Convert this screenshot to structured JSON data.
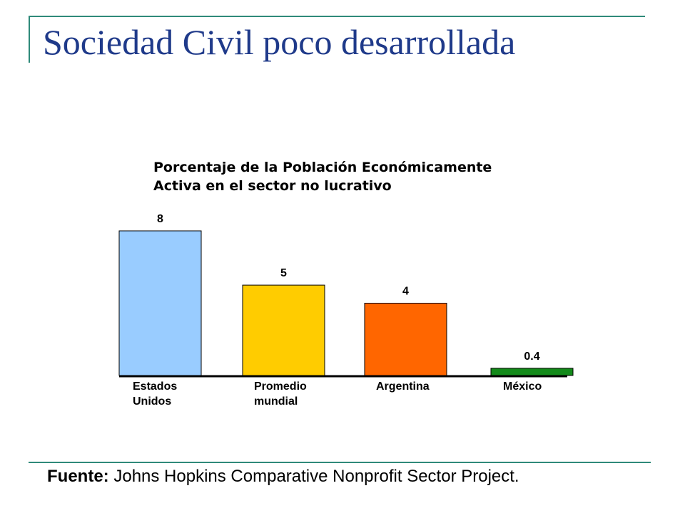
{
  "slide": {
    "title": "Sociedad Civil poco desarrollada",
    "source_label": "Fuente:",
    "source_text": " Johns Hopkins Comparative Nonprofit Sector Project."
  },
  "chart_data": {
    "type": "bar",
    "title_lines": [
      "Porcentaje de la Población Económicamente",
      "Activa en el sector no lucrativo"
    ],
    "categories": [
      [
        "Estados",
        "Unidos"
      ],
      [
        "Promedio",
        "mundial"
      ],
      [
        "Argentina"
      ],
      [
        "México"
      ]
    ],
    "values": [
      8,
      5,
      4,
      0.4
    ],
    "value_labels": [
      "8",
      "5",
      "4",
      "0.4"
    ],
    "colors": [
      "#99ccff",
      "#ffcc00",
      "#ff6600",
      "#138a1a"
    ],
    "ylim": [
      0,
      8
    ],
    "grid": false,
    "legend": "none",
    "xlabel": "",
    "ylabel": ""
  },
  "colors": {
    "title": "#1f3a8a",
    "frame": "#2f8a7a"
  }
}
